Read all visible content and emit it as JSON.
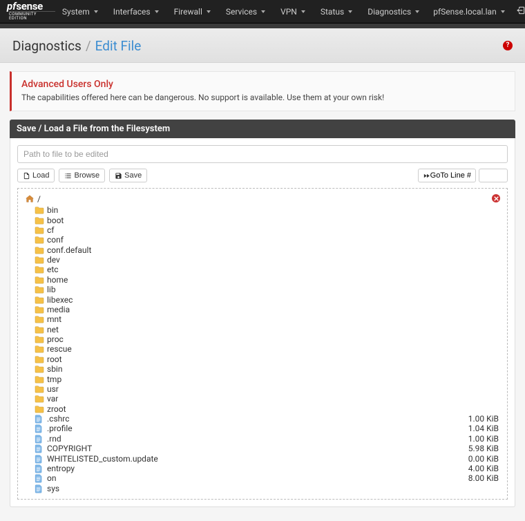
{
  "brand": {
    "prefix": "pf",
    "main": "sense",
    "sub": "COMMUNITY EDITION"
  },
  "hostname": "pfSense.local.lan",
  "nav": [
    {
      "label": "System"
    },
    {
      "label": "Interfaces"
    },
    {
      "label": "Firewall"
    },
    {
      "label": "Services"
    },
    {
      "label": "VPN"
    },
    {
      "label": "Status"
    },
    {
      "label": "Diagnostics"
    }
  ],
  "breadcrumb": {
    "main": "Diagnostics",
    "sep": "/",
    "sub": "Edit File"
  },
  "alert": {
    "title": "Advanced Users Only",
    "body": "The capabilities offered here can be dangerous. No support is available. Use them at your own risk!"
  },
  "panel": {
    "title": "Save / Load a File from the Filesystem",
    "path_placeholder": "Path to file to be edited",
    "buttons": {
      "load": "Load",
      "browse": "Browse",
      "save": "Save",
      "goto": "GoTo Line #"
    }
  },
  "browser": {
    "root_label": "/",
    "folder_color": "#f6c148",
    "folder_stroke": "#c99a2e",
    "file_color": "#7fb7e8",
    "file_stroke": "#5a9bd4",
    "items": [
      {
        "type": "folder",
        "name": "bin"
      },
      {
        "type": "folder",
        "name": "boot"
      },
      {
        "type": "folder",
        "name": "cf"
      },
      {
        "type": "folder",
        "name": "conf"
      },
      {
        "type": "folder",
        "name": "conf.default"
      },
      {
        "type": "folder",
        "name": "dev"
      },
      {
        "type": "folder",
        "name": "etc"
      },
      {
        "type": "folder",
        "name": "home"
      },
      {
        "type": "folder",
        "name": "lib"
      },
      {
        "type": "folder",
        "name": "libexec"
      },
      {
        "type": "folder",
        "name": "media"
      },
      {
        "type": "folder",
        "name": "mnt"
      },
      {
        "type": "folder",
        "name": "net"
      },
      {
        "type": "folder",
        "name": "proc"
      },
      {
        "type": "folder",
        "name": "rescue"
      },
      {
        "type": "folder",
        "name": "root"
      },
      {
        "type": "folder",
        "name": "sbin"
      },
      {
        "type": "folder",
        "name": "tmp"
      },
      {
        "type": "folder",
        "name": "usr"
      },
      {
        "type": "folder",
        "name": "var"
      },
      {
        "type": "folder",
        "name": "zroot"
      },
      {
        "type": "file",
        "name": ".cshrc",
        "size": "1.00 KiB"
      },
      {
        "type": "file",
        "name": ".profile",
        "size": "1.04 KiB"
      },
      {
        "type": "file",
        "name": ".rnd",
        "size": "1.00 KiB"
      },
      {
        "type": "file",
        "name": "COPYRIGHT",
        "size": "5.98 KiB"
      },
      {
        "type": "file",
        "name": "WHITELISTED_custom.update",
        "size": "0.00 KiB"
      },
      {
        "type": "file",
        "name": "entropy",
        "size": "4.00 KiB"
      },
      {
        "type": "file",
        "name": "on",
        "size": "8.00 KiB"
      },
      {
        "type": "file",
        "name": "sys"
      }
    ]
  },
  "colors": {
    "navbar_bg": "#212121",
    "accent": "#3b8dd1",
    "danger": "#c9302c",
    "panel_header": "#424242"
  }
}
